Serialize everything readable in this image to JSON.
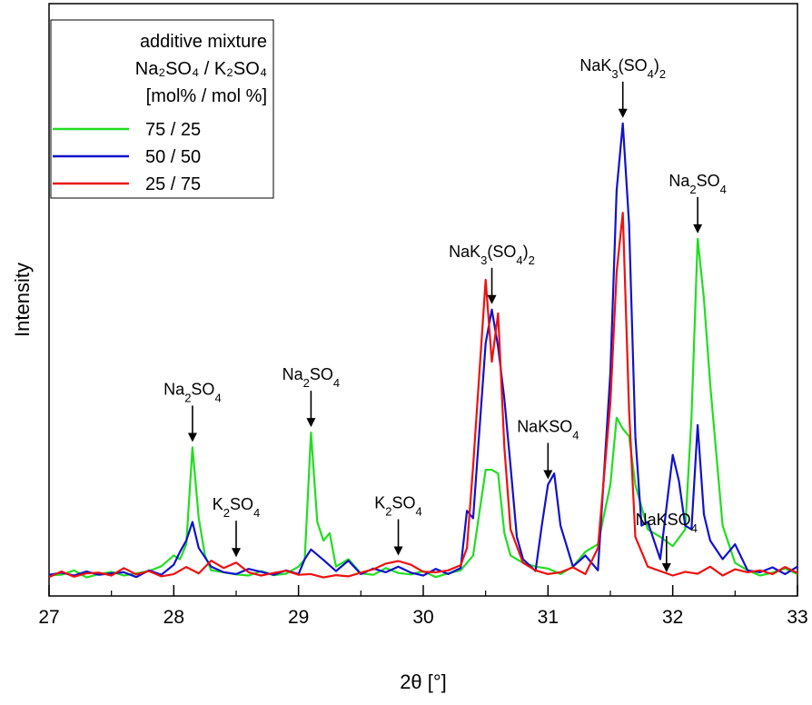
{
  "chart_data": {
    "type": "line",
    "xlabel": "2θ [°]",
    "ylabel": "Intensity",
    "xlim": [
      27,
      33
    ],
    "ylim": [
      0,
      100
    ],
    "x_ticks": [
      "27",
      "28",
      "29",
      "30",
      "31",
      "32",
      "33"
    ],
    "y_ticks_shown": false,
    "grid": false,
    "legend": {
      "position": "top-left",
      "title_lines": [
        "additive mixture",
        "Na₂SO₄ / K₂SO₄",
        "[mol% / mol %]"
      ],
      "entries": [
        "75 / 25",
        "50 / 50",
        "25 / 75"
      ]
    },
    "series": [
      {
        "name": "75 / 25",
        "color": "#22dd22",
        "points": [
          [
            27.0,
            0.7
          ],
          [
            27.1,
            0.8
          ],
          [
            27.2,
            2.0
          ],
          [
            27.3,
            0.1
          ],
          [
            27.4,
            1.0
          ],
          [
            27.5,
            1.6
          ],
          [
            27.6,
            0.6
          ],
          [
            27.7,
            1.2
          ],
          [
            27.8,
            1.8
          ],
          [
            27.9,
            3.1
          ],
          [
            28.0,
            6.0
          ],
          [
            28.05,
            5.0
          ],
          [
            28.1,
            9.0
          ],
          [
            28.15,
            35.0
          ],
          [
            28.2,
            16.0
          ],
          [
            28.25,
            6.0
          ],
          [
            28.3,
            2.0
          ],
          [
            28.4,
            1.5
          ],
          [
            28.5,
            0.9
          ],
          [
            28.6,
            0.6
          ],
          [
            28.7,
            1.8
          ],
          [
            28.8,
            0.7
          ],
          [
            28.9,
            1.1
          ],
          [
            29.0,
            3.0
          ],
          [
            29.05,
            5.0
          ],
          [
            29.1,
            39.0
          ],
          [
            29.15,
            15.0
          ],
          [
            29.2,
            10.0
          ],
          [
            29.25,
            12.0
          ],
          [
            29.3,
            3.0
          ],
          [
            29.4,
            5.0
          ],
          [
            29.5,
            1.2
          ],
          [
            29.6,
            0.8
          ],
          [
            29.7,
            2.6
          ],
          [
            29.8,
            1.3
          ],
          [
            29.9,
            0.9
          ],
          [
            30.0,
            1.8
          ],
          [
            30.1,
            0.2
          ],
          [
            30.2,
            1.2
          ],
          [
            30.3,
            2.0
          ],
          [
            30.4,
            6.0
          ],
          [
            30.5,
            29.0
          ],
          [
            30.55,
            29.0
          ],
          [
            30.6,
            28.0
          ],
          [
            30.65,
            12.0
          ],
          [
            30.7,
            6.0
          ],
          [
            30.8,
            4.0
          ],
          [
            30.9,
            3.0
          ],
          [
            31.0,
            2.5
          ],
          [
            31.1,
            1.0
          ],
          [
            31.2,
            3.0
          ],
          [
            31.3,
            7.0
          ],
          [
            31.4,
            9.0
          ],
          [
            31.5,
            25.0
          ],
          [
            31.55,
            43.0
          ],
          [
            31.6,
            40.0
          ],
          [
            31.65,
            38.0
          ],
          [
            31.7,
            25.0
          ],
          [
            31.8,
            13.0
          ],
          [
            31.9,
            11.0
          ],
          [
            32.0,
            8.5
          ],
          [
            32.1,
            13.0
          ],
          [
            32.15,
            43.0
          ],
          [
            32.2,
            91.0
          ],
          [
            32.25,
            75.0
          ],
          [
            32.3,
            52.0
          ],
          [
            32.4,
            14.0
          ],
          [
            32.5,
            4.0
          ],
          [
            32.6,
            2.0
          ],
          [
            32.7,
            0.6
          ],
          [
            32.8,
            1.4
          ],
          [
            32.9,
            2.5
          ],
          [
            33.0,
            1.0
          ]
        ]
      },
      {
        "name": "50 / 50",
        "color": "#1111cc",
        "points": [
          [
            27.0,
            0.8
          ],
          [
            27.1,
            1.4
          ],
          [
            27.2,
            0.6
          ],
          [
            27.3,
            1.7
          ],
          [
            27.4,
            0.8
          ],
          [
            27.5,
            1.2
          ],
          [
            27.6,
            1.5
          ],
          [
            27.7,
            0.2
          ],
          [
            27.8,
            2.0
          ],
          [
            27.9,
            0.8
          ],
          [
            28.0,
            3.5
          ],
          [
            28.05,
            7.0
          ],
          [
            28.1,
            10.0
          ],
          [
            28.15,
            15.0
          ],
          [
            28.2,
            8.0
          ],
          [
            28.3,
            3.0
          ],
          [
            28.4,
            1.5
          ],
          [
            28.5,
            1.0
          ],
          [
            28.6,
            2.4
          ],
          [
            28.7,
            1.6
          ],
          [
            28.8,
            0.8
          ],
          [
            28.9,
            2.0
          ],
          [
            29.0,
            1.0
          ],
          [
            29.05,
            5.0
          ],
          [
            29.1,
            7.6
          ],
          [
            29.2,
            4.8
          ],
          [
            29.3,
            1.8
          ],
          [
            29.4,
            4.6
          ],
          [
            29.5,
            1.0
          ],
          [
            29.6,
            2.5
          ],
          [
            29.7,
            1.5
          ],
          [
            29.8,
            3.0
          ],
          [
            29.9,
            1.4
          ],
          [
            30.0,
            0.6
          ],
          [
            30.1,
            2.4
          ],
          [
            30.2,
            1.0
          ],
          [
            30.3,
            2.6
          ],
          [
            30.35,
            18.0
          ],
          [
            30.4,
            16.0
          ],
          [
            30.5,
            63.0
          ],
          [
            30.55,
            72.0
          ],
          [
            30.6,
            62.0
          ],
          [
            30.65,
            48.0
          ],
          [
            30.7,
            30.0
          ],
          [
            30.75,
            11.0
          ],
          [
            30.8,
            5.0
          ],
          [
            30.9,
            1.8
          ],
          [
            30.95,
            14.0
          ],
          [
            31.0,
            25.0
          ],
          [
            31.05,
            28.0
          ],
          [
            31.1,
            14.0
          ],
          [
            31.2,
            3.0
          ],
          [
            31.3,
            6.0
          ],
          [
            31.4,
            2.0
          ],
          [
            31.5,
            55.0
          ],
          [
            31.55,
            104.0
          ],
          [
            31.6,
            122.0
          ],
          [
            31.65,
            95.0
          ],
          [
            31.7,
            38.0
          ],
          [
            31.75,
            14.0
          ],
          [
            31.8,
            15.0
          ],
          [
            31.9,
            5.0
          ],
          [
            32.0,
            33.0
          ],
          [
            32.05,
            26.0
          ],
          [
            32.1,
            14.0
          ],
          [
            32.15,
            13.0
          ],
          [
            32.2,
            41.0
          ],
          [
            32.25,
            17.0
          ],
          [
            32.3,
            10.0
          ],
          [
            32.4,
            5.0
          ],
          [
            32.5,
            9.0
          ],
          [
            32.6,
            2.0
          ],
          [
            32.7,
            1.5
          ],
          [
            32.8,
            2.8
          ],
          [
            32.9,
            1.0
          ],
          [
            33.0,
            3.0
          ]
        ]
      },
      {
        "name": "25 / 75",
        "color": "#ee1111",
        "points": [
          [
            27.0,
            0.2
          ],
          [
            27.1,
            1.7
          ],
          [
            27.2,
            0.3
          ],
          [
            27.3,
            1.2
          ],
          [
            27.4,
            1.4
          ],
          [
            27.5,
            0.6
          ],
          [
            27.6,
            2.6
          ],
          [
            27.7,
            0.9
          ],
          [
            27.8,
            1.8
          ],
          [
            27.9,
            0.4
          ],
          [
            28.0,
            1.0
          ],
          [
            28.1,
            2.9
          ],
          [
            28.2,
            1.2
          ],
          [
            28.3,
            4.6
          ],
          [
            28.4,
            2.6
          ],
          [
            28.5,
            4.1
          ],
          [
            28.6,
            1.5
          ],
          [
            28.7,
            0.6
          ],
          [
            28.8,
            1.3
          ],
          [
            28.9,
            1.9
          ],
          [
            29.0,
            0.8
          ],
          [
            29.1,
            1.0
          ],
          [
            29.2,
            0.1
          ],
          [
            29.3,
            0.7
          ],
          [
            29.4,
            0.4
          ],
          [
            29.5,
            1.4
          ],
          [
            29.6,
            2.3
          ],
          [
            29.7,
            3.8
          ],
          [
            29.8,
            4.5
          ],
          [
            29.9,
            3.5
          ],
          [
            30.0,
            1.6
          ],
          [
            30.1,
            1.5
          ],
          [
            30.2,
            2.0
          ],
          [
            30.3,
            3.4
          ],
          [
            30.35,
            8.0
          ],
          [
            30.4,
            30.0
          ],
          [
            30.5,
            80.0
          ],
          [
            30.55,
            58.0
          ],
          [
            30.6,
            71.0
          ],
          [
            30.65,
            35.0
          ],
          [
            30.7,
            13.0
          ],
          [
            30.8,
            4.0
          ],
          [
            30.9,
            2.0
          ],
          [
            31.0,
            1.0
          ],
          [
            31.1,
            1.5
          ],
          [
            31.2,
            2.8
          ],
          [
            31.3,
            1.0
          ],
          [
            31.4,
            8.0
          ],
          [
            31.5,
            47.0
          ],
          [
            31.55,
            82.0
          ],
          [
            31.6,
            98.0
          ],
          [
            31.65,
            45.0
          ],
          [
            31.7,
            11.0
          ],
          [
            31.8,
            3.0
          ],
          [
            31.9,
            1.8
          ],
          [
            32.0,
            0.6
          ],
          [
            32.1,
            1.6
          ],
          [
            32.2,
            1.1
          ],
          [
            32.3,
            3.0
          ],
          [
            32.4,
            0.6
          ],
          [
            32.5,
            2.3
          ],
          [
            32.6,
            1.5
          ],
          [
            32.7,
            2.0
          ],
          [
            32.8,
            1.0
          ],
          [
            32.9,
            2.9
          ],
          [
            33.0,
            1.3
          ]
        ]
      }
    ],
    "annotations": [
      {
        "parts": [
          [
            "Na",
            false
          ],
          [
            "2",
            true
          ],
          [
            "SO",
            false
          ],
          [
            "4",
            true
          ]
        ],
        "x": 28.15
      },
      {
        "parts": [
          [
            "K",
            false
          ],
          [
            "2",
            true
          ],
          [
            "SO",
            false
          ],
          [
            "4",
            true
          ]
        ],
        "x": 28.5
      },
      {
        "parts": [
          [
            "Na",
            false
          ],
          [
            "2",
            true
          ],
          [
            "SO",
            false
          ],
          [
            "4",
            true
          ]
        ],
        "x": 29.1
      },
      {
        "parts": [
          [
            "K",
            false
          ],
          [
            "2",
            true
          ],
          [
            "SO",
            false
          ],
          [
            "4",
            true
          ]
        ],
        "x": 29.8
      },
      {
        "parts": [
          [
            "NaK",
            false
          ],
          [
            "3",
            true
          ],
          [
            "(SO",
            false
          ],
          [
            "4",
            true
          ],
          [
            ")",
            false
          ],
          [
            "2",
            true
          ]
        ],
        "x": 30.55
      },
      {
        "parts": [
          [
            "NaKSO",
            false
          ],
          [
            "4",
            true
          ]
        ],
        "x": 31.0
      },
      {
        "parts": [
          [
            "NaK",
            false
          ],
          [
            "3",
            true
          ],
          [
            "(SO",
            false
          ],
          [
            "4",
            true
          ],
          [
            ")",
            false
          ],
          [
            "2",
            true
          ]
        ],
        "x": 31.6
      },
      {
        "parts": [
          [
            "NaKSO",
            false
          ],
          [
            "4",
            true
          ]
        ],
        "x": 31.95
      },
      {
        "parts": [
          [
            "Na",
            false
          ],
          [
            "2",
            true
          ],
          [
            "SO",
            false
          ],
          [
            "4",
            true
          ]
        ],
        "x": 32.2
      }
    ]
  }
}
